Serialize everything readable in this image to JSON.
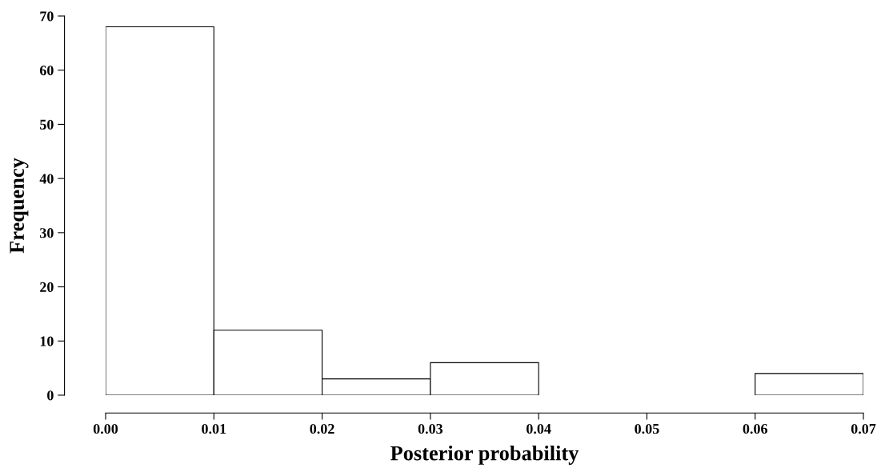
{
  "chart_data": {
    "type": "histogram",
    "xlabel": "Posterior probability",
    "ylabel": "Frequency",
    "bins": [
      0.0,
      0.01,
      0.02,
      0.03,
      0.04,
      0.05,
      0.06,
      0.07
    ],
    "values": [
      68,
      12,
      3,
      6,
      0,
      0,
      4
    ],
    "color": "#ffffff",
    "xlim": [
      0.0,
      0.07
    ],
    "xticks": [
      {
        "value": 0.0,
        "label": "0.00"
      },
      {
        "value": 0.01,
        "label": "0.01"
      },
      {
        "value": 0.02,
        "label": "0.02"
      },
      {
        "value": 0.03,
        "label": "0.03"
      },
      {
        "value": 0.04,
        "label": "0.04"
      },
      {
        "value": 0.05,
        "label": "0.05"
      },
      {
        "value": 0.06,
        "label": "0.06"
      },
      {
        "value": 0.07,
        "label": "0.07"
      }
    ],
    "ylim": [
      0,
      70
    ],
    "yticks": [
      0,
      10,
      20,
      30,
      40,
      50,
      60,
      70
    ],
    "grid": false
  }
}
